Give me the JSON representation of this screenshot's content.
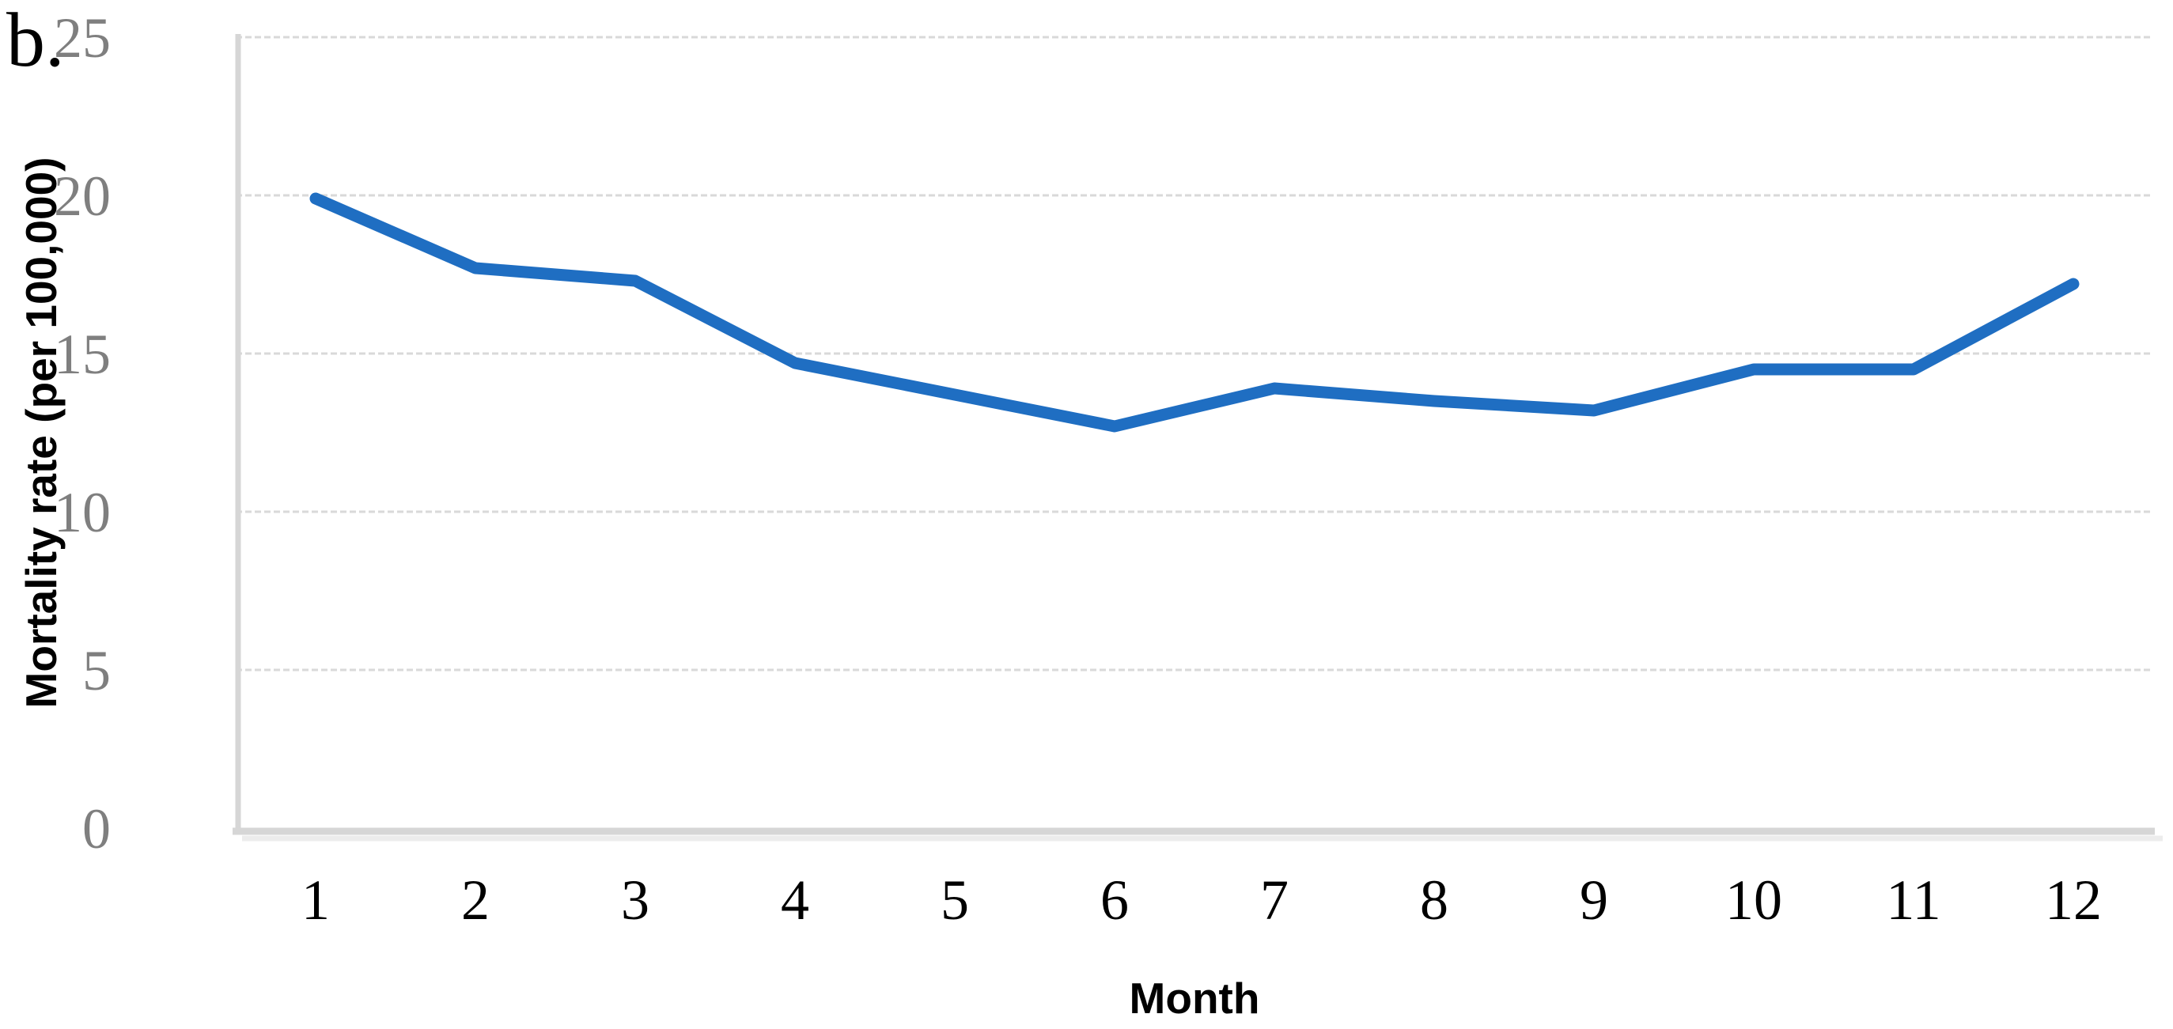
{
  "panel_label": "b.",
  "chart_data": {
    "type": "line",
    "categories": [
      "1",
      "2",
      "3",
      "4",
      "5",
      "6",
      "7",
      "8",
      "9",
      "10",
      "11",
      "12"
    ],
    "series": [
      {
        "name": "Mortality rate",
        "values": [
          19.9,
          17.7,
          17.3,
          14.7,
          13.7,
          12.7,
          13.9,
          13.5,
          13.2,
          14.5,
          14.5,
          17.2
        ]
      }
    ],
    "xlabel": "Month",
    "ylabel": "Mortality rate (per 100,000)",
    "ylim": [
      0,
      25
    ],
    "yticks": [
      0,
      5,
      10,
      15,
      20,
      25
    ],
    "grid": "horizontal-dashed-major",
    "legend_position": "none"
  },
  "colors": {
    "line": "#1F6EC2",
    "gridline": "#D9D9D9",
    "axis_line": "#D6D6D6",
    "axis_shadow": "#ECECEC",
    "y_tick_label": "#7F7F7F",
    "x_tick_label": "#000000",
    "title_text": "#000000",
    "background": "#FFFFFF"
  }
}
